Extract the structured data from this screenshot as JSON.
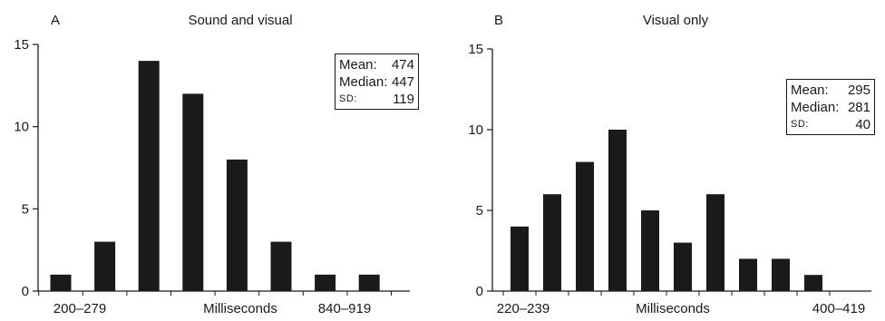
{
  "chart_data": [
    {
      "type": "bar",
      "panel_letter": "A",
      "title": "Sound and visual",
      "xlabel": "Milliseconds",
      "x_tick_labels": [
        "200–279",
        "840–919"
      ],
      "y_ticks": [
        0,
        5,
        10,
        15
      ],
      "ylim": [
        0,
        15
      ],
      "values": [
        1,
        3,
        14,
        12,
        8,
        3,
        1,
        1
      ],
      "bar_color": "#1a1a1a",
      "grid": false,
      "stats": {
        "mean_label": "Mean:",
        "mean": "474",
        "median_label": "Median:",
        "median": "447",
        "sd_label": "SD:",
        "sd": "119"
      }
    },
    {
      "type": "bar",
      "panel_letter": "B",
      "title": "Visual only",
      "xlabel": "Milliseconds",
      "x_tick_labels": [
        "220–239",
        "400–419"
      ],
      "y_ticks": [
        0,
        5,
        10,
        15
      ],
      "ylim": [
        0,
        15
      ],
      "values": [
        4,
        6,
        8,
        10,
        5,
        3,
        6,
        2,
        2,
        1
      ],
      "bar_color": "#1a1a1a",
      "grid": false,
      "stats": {
        "mean_label": "Mean:",
        "mean": "295",
        "median_label": "Median:",
        "median": "281",
        "sd_label": "SD:",
        "sd": "40"
      }
    }
  ]
}
